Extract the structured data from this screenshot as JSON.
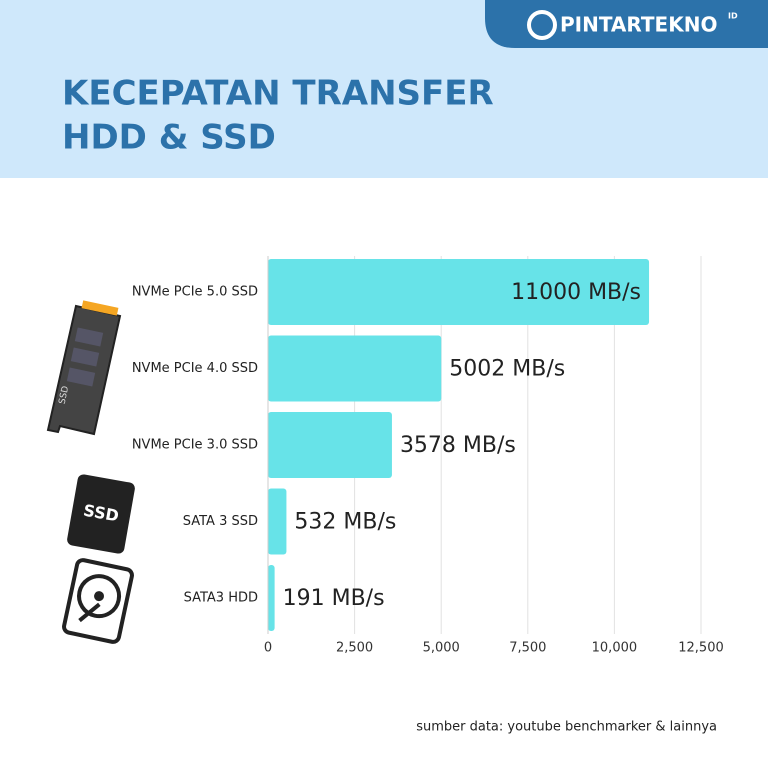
{
  "logo": {
    "text": "PINTARTEKNO",
    "badge": "ID"
  },
  "icons": {
    "m2_label": "SSD",
    "sata_label": "SSD"
  },
  "chart_data": {
    "type": "bar",
    "orientation": "horizontal",
    "title": [
      "KECEPATAN TRANSFER",
      "HDD & SSD"
    ],
    "categories": [
      "NVMe PCIe 5.0 SSD",
      "NVMe PCIe 4.0 SSD",
      "NVMe PCIe 3.0 SSD",
      "SATA 3 SSD",
      "SATA3 HDD"
    ],
    "values": [
      11000,
      5002,
      3578,
      532,
      191
    ],
    "value_labels": [
      "11000 MB/s",
      "5002 MB/s",
      "3578 MB/s",
      "532 MB/s",
      "191 MB/s"
    ],
    "color": "#67e3e8",
    "xlim": [
      0,
      12500
    ],
    "xticks": [
      0,
      {
        "value": 2500,
        "label": "2,500"
      },
      {
        "value": 5000,
        "label": "5,000"
      },
      {
        "value": 7500,
        "label": "7,500"
      },
      {
        "value": 10000,
        "label": "10,000"
      },
      {
        "value": 12500,
        "label": "12,500"
      }
    ],
    "grid": true,
    "source": "sumber data: youtube benchmarker & lainnya"
  }
}
